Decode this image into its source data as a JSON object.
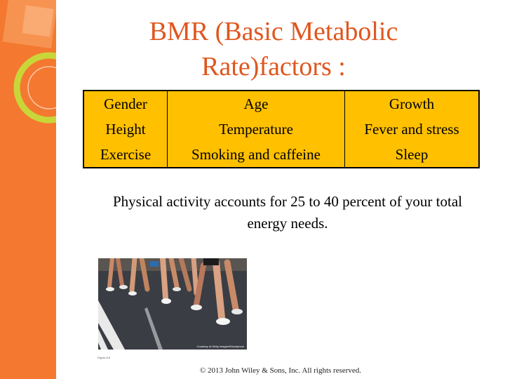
{
  "slide": {
    "title_line1": "BMR (Basic Metabolic",
    "title_line2": "Rate)factors :",
    "factors_table": [
      [
        "Gender",
        "Age",
        "Growth"
      ],
      [
        "Height",
        "Temperature",
        "Fever and stress"
      ],
      [
        "Exercise",
        "Smoking and caffeine",
        "Sleep"
      ]
    ],
    "activity_text": "Physical activity accounts for 25 to 40 percent of your total energy needs.",
    "photo_credit": "Courtesy of Getty Images/iStockphoto",
    "figure_label": "Figure 8.5",
    "copyright": "© 2013 John Wiley & Sons, Inc. All rights reserved."
  },
  "colors": {
    "sidebar": "#f4782f",
    "title": "#e0561e",
    "table_fill": "#ffc000",
    "accent_ring": "#c8d639"
  }
}
